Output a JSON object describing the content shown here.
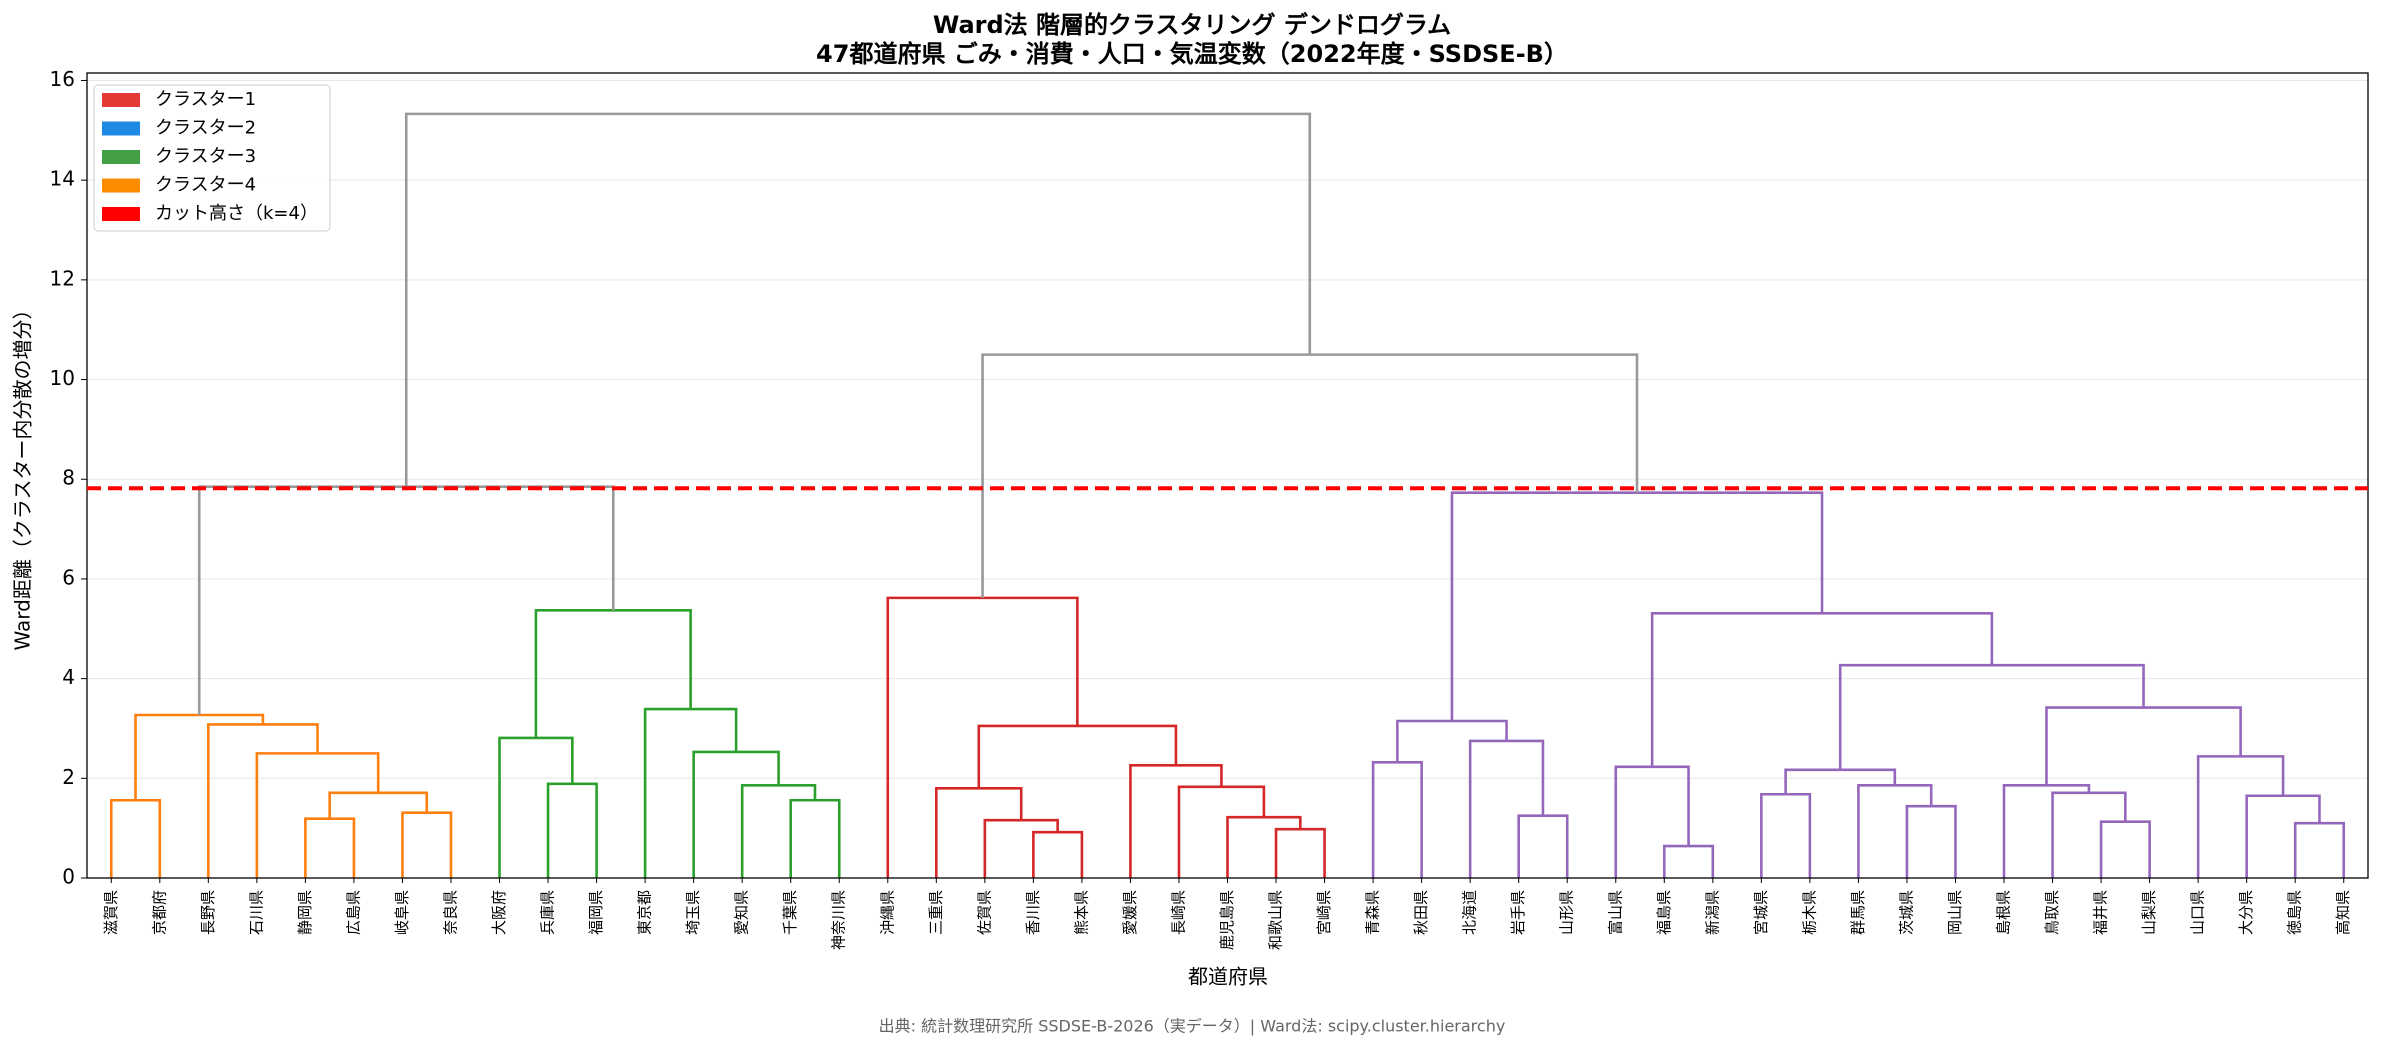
{
  "chart_data": {
    "type": "dendrogram",
    "title": [
      "Ward法 階層的クラスタリング デンドログラム",
      "47都道府県 ごみ・消費・人口・気温変数（2022年度・SSDSE-B）"
    ],
    "x_label": "都道府県",
    "y_label": "Ward距離（クラスター内分散の増分）",
    "source": "出典: 統計数理研究所 SSDSE-B-2026（実データ）| Ward法: scipy.cluster.hierarchy",
    "ylim": [
      0,
      16.15
    ],
    "yticks": [
      0,
      2,
      4,
      6,
      8,
      10,
      12,
      14,
      16
    ],
    "grid": true,
    "cut": {
      "height": 7.82,
      "color": "#ff0000"
    },
    "legend": {
      "loc": "upper left",
      "items": [
        {
          "label": "クラスター1",
          "color": "#e53935"
        },
        {
          "label": "クラスター2",
          "color": "#1e88e5"
        },
        {
          "label": "クラスター3",
          "color": "#43a047"
        },
        {
          "label": "クラスター4",
          "color": "#fb8c00"
        },
        {
          "label": "カット高さ（k=4）",
          "color": "#ff0000"
        }
      ]
    },
    "tree": {
      "height": 15.33,
      "color": "#999999",
      "children": [
        {
          "height": 7.85,
          "color": "#999999",
          "children": [
            {
              "height": 3.27,
              "color": "#ff7f0e",
              "children": [
                {
                  "height": 1.56,
                  "color": "#ff7f0e",
                  "children": [
                    "滋賀県",
                    "京都府"
                  ]
                },
                {
                  "height": 3.08,
                  "color": "#ff7f0e",
                  "children": [
                    "長野県",
                    {
                      "height": 2.5,
                      "color": "#ff7f0e",
                      "children": [
                        "石川県",
                        {
                          "height": 1.71,
                          "color": "#ff7f0e",
                          "children": [
                            {
                              "height": 1.19,
                              "color": "#ff7f0e",
                              "children": [
                                "静岡県",
                                "広島県"
                              ]
                            },
                            {
                              "height": 1.31,
                              "color": "#ff7f0e",
                              "children": [
                                "岐阜県",
                                "奈良県"
                              ]
                            }
                          ]
                        }
                      ]
                    }
                  ]
                }
              ]
            },
            {
              "height": 5.37,
              "color": "#2ca02c",
              "children": [
                {
                  "height": 2.81,
                  "color": "#2ca02c",
                  "children": [
                    "大阪府",
                    {
                      "height": 1.89,
                      "color": "#2ca02c",
                      "children": [
                        "兵庫県",
                        "福岡県"
                      ]
                    }
                  ]
                },
                {
                  "height": 3.39,
                  "color": "#2ca02c",
                  "children": [
                    "東京都",
                    {
                      "height": 2.53,
                      "color": "#2ca02c",
                      "children": [
                        "埼玉県",
                        {
                          "height": 1.86,
                          "color": "#2ca02c",
                          "children": [
                            "愛知県",
                            {
                              "height": 1.56,
                              "color": "#2ca02c",
                              "children": [
                                "千葉県",
                                "神奈川県"
                              ]
                            }
                          ]
                        }
                      ]
                    }
                  ]
                }
              ]
            }
          ]
        },
        {
          "height": 10.5,
          "color": "#999999",
          "children": [
            {
              "height": 5.62,
              "color": "#d62728",
              "children": [
                "沖縄県",
                {
                  "height": 3.05,
                  "color": "#d62728",
                  "children": [
                    {
                      "height": 1.8,
                      "color": "#d62728",
                      "children": [
                        "三重県",
                        {
                          "height": 1.16,
                          "color": "#d62728",
                          "children": [
                            "佐賀県",
                            {
                              "height": 0.92,
                              "color": "#d62728",
                              "children": [
                                "香川県",
                                "熊本県"
                              ]
                            }
                          ]
                        }
                      ]
                    },
                    {
                      "height": 2.26,
                      "color": "#d62728",
                      "children": [
                        "愛媛県",
                        {
                          "height": 1.83,
                          "color": "#d62728",
                          "children": [
                            "長崎県",
                            {
                              "height": 1.22,
                              "color": "#d62728",
                              "children": [
                                "鹿児島県",
                                {
                                  "height": 0.98,
                                  "color": "#d62728",
                                  "children": [
                                    "和歌山県",
                                    "宮崎県"
                                  ]
                                }
                              ]
                            }
                          ]
                        }
                      ]
                    }
                  ]
                }
              ]
            },
            {
              "height": 7.73,
              "color": "#9467bd",
              "children": [
                {
                  "height": 3.15,
                  "color": "#9467bd",
                  "children": [
                    {
                      "height": 2.32,
                      "color": "#9467bd",
                      "children": [
                        "青森県",
                        "秋田県"
                      ]
                    },
                    {
                      "height": 2.75,
                      "color": "#9467bd",
                      "children": [
                        "北海道",
                        {
                          "height": 1.25,
                          "color": "#9467bd",
                          "children": [
                            "岩手県",
                            "山形県"
                          ]
                        }
                      ]
                    }
                  ]
                },
                {
                  "height": 5.31,
                  "color": "#9467bd",
                  "children": [
                    {
                      "height": 2.23,
                      "color": "#9467bd",
                      "children": [
                        "富山県",
                        {
                          "height": 0.64,
                          "color": "#9467bd",
                          "children": [
                            "福島県",
                            "新潟県"
                          ]
                        }
                      ]
                    },
                    {
                      "height": 4.27,
                      "color": "#9467bd",
                      "children": [
                        {
                          "height": 2.17,
                          "color": "#9467bd",
                          "children": [
                            {
                              "height": 1.68,
                              "color": "#9467bd",
                              "children": [
                                "宮城県",
                                "栃木県"
                              ]
                            },
                            {
                              "height": 1.86,
                              "color": "#9467bd",
                              "children": [
                                "群馬県",
                                {
                                  "height": 1.44,
                                  "color": "#9467bd",
                                  "children": [
                                    "茨城県",
                                    "岡山県"
                                  ]
                                }
                              ]
                            }
                          ]
                        },
                        {
                          "height": 3.42,
                          "color": "#9467bd",
                          "children": [
                            {
                              "height": 1.86,
                              "color": "#9467bd",
                              "children": [
                                "島根県",
                                {
                                  "height": 1.71,
                                  "color": "#9467bd",
                                  "children": [
                                    "鳥取県",
                                    {
                                      "height": 1.13,
                                      "color": "#9467bd",
                                      "children": [
                                        "福井県",
                                        "山梨県"
                                      ]
                                    }
                                  ]
                                }
                              ]
                            },
                            {
                              "height": 2.44,
                              "color": "#9467bd",
                              "children": [
                                "山口県",
                                {
                                  "height": 1.65,
                                  "color": "#9467bd",
                                  "children": [
                                    "大分県",
                                    {
                                      "height": 1.1,
                                      "color": "#9467bd",
                                      "children": [
                                        "徳島県",
                                        "高知県"
                                      ]
                                    }
                                  ]
                                }
                              ]
                            }
                          ]
                        }
                      ]
                    }
                  ]
                }
              ]
            }
          ]
        }
      ]
    }
  }
}
